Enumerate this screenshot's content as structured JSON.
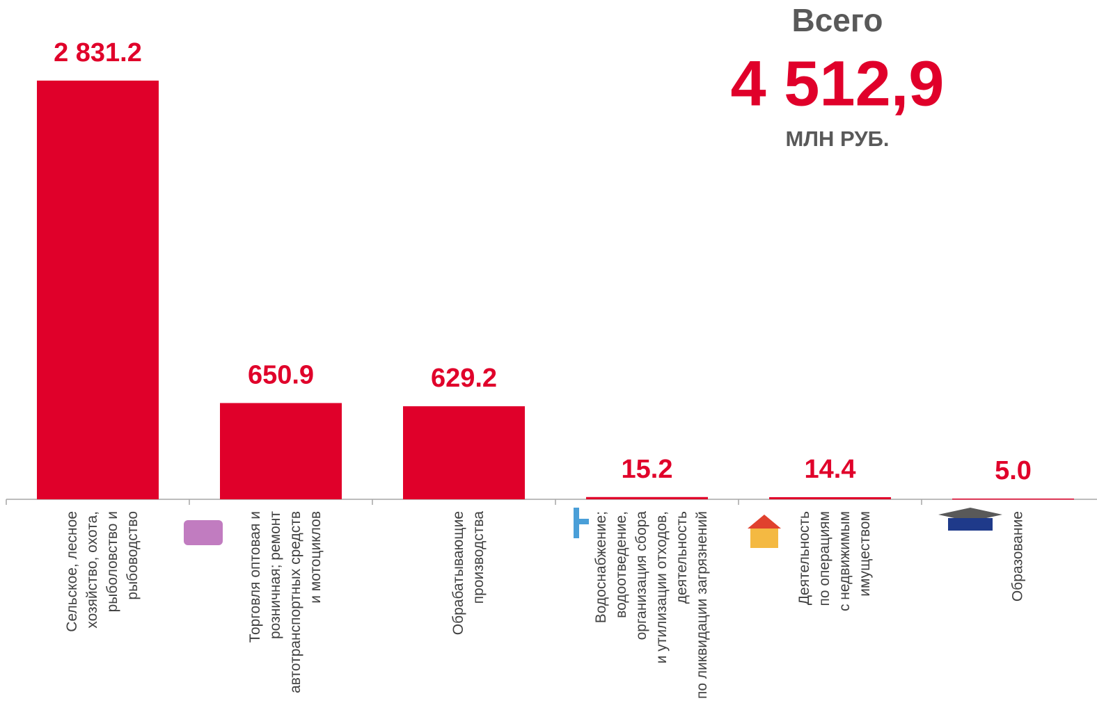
{
  "chart_data": {
    "type": "bar",
    "categories": [
      "Сельское, лесное\nхозяйство, охота,\nрыболовство и\nрыбоводство",
      "Торговля оптовая и\nрозничная; ремонт\nавтотранспортных средств\nи мотоциклов",
      "Обрабатывающие\nпроизводства",
      "Водоснабжение;\nводоотведение,\nорганизация сбора\nи утилизации отходов,\nдеятельность\nпо ликвидации загрязнений",
      "Деятельность\nпо операциям\nс недвижимым\nимуществом",
      "Образование"
    ],
    "values": [
      2831.2,
      650.9,
      629.2,
      15.2,
      14.4,
      5.0
    ],
    "value_labels": [
      "2 831.2",
      "650.9",
      "629.2",
      "15.2",
      "14.4",
      "5.0"
    ],
    "color": "#e0002a",
    "ylim": [
      0,
      3000
    ],
    "total": {
      "title": "Всего",
      "value_label": "4 512,9",
      "unit": "МЛН РУБ."
    }
  }
}
